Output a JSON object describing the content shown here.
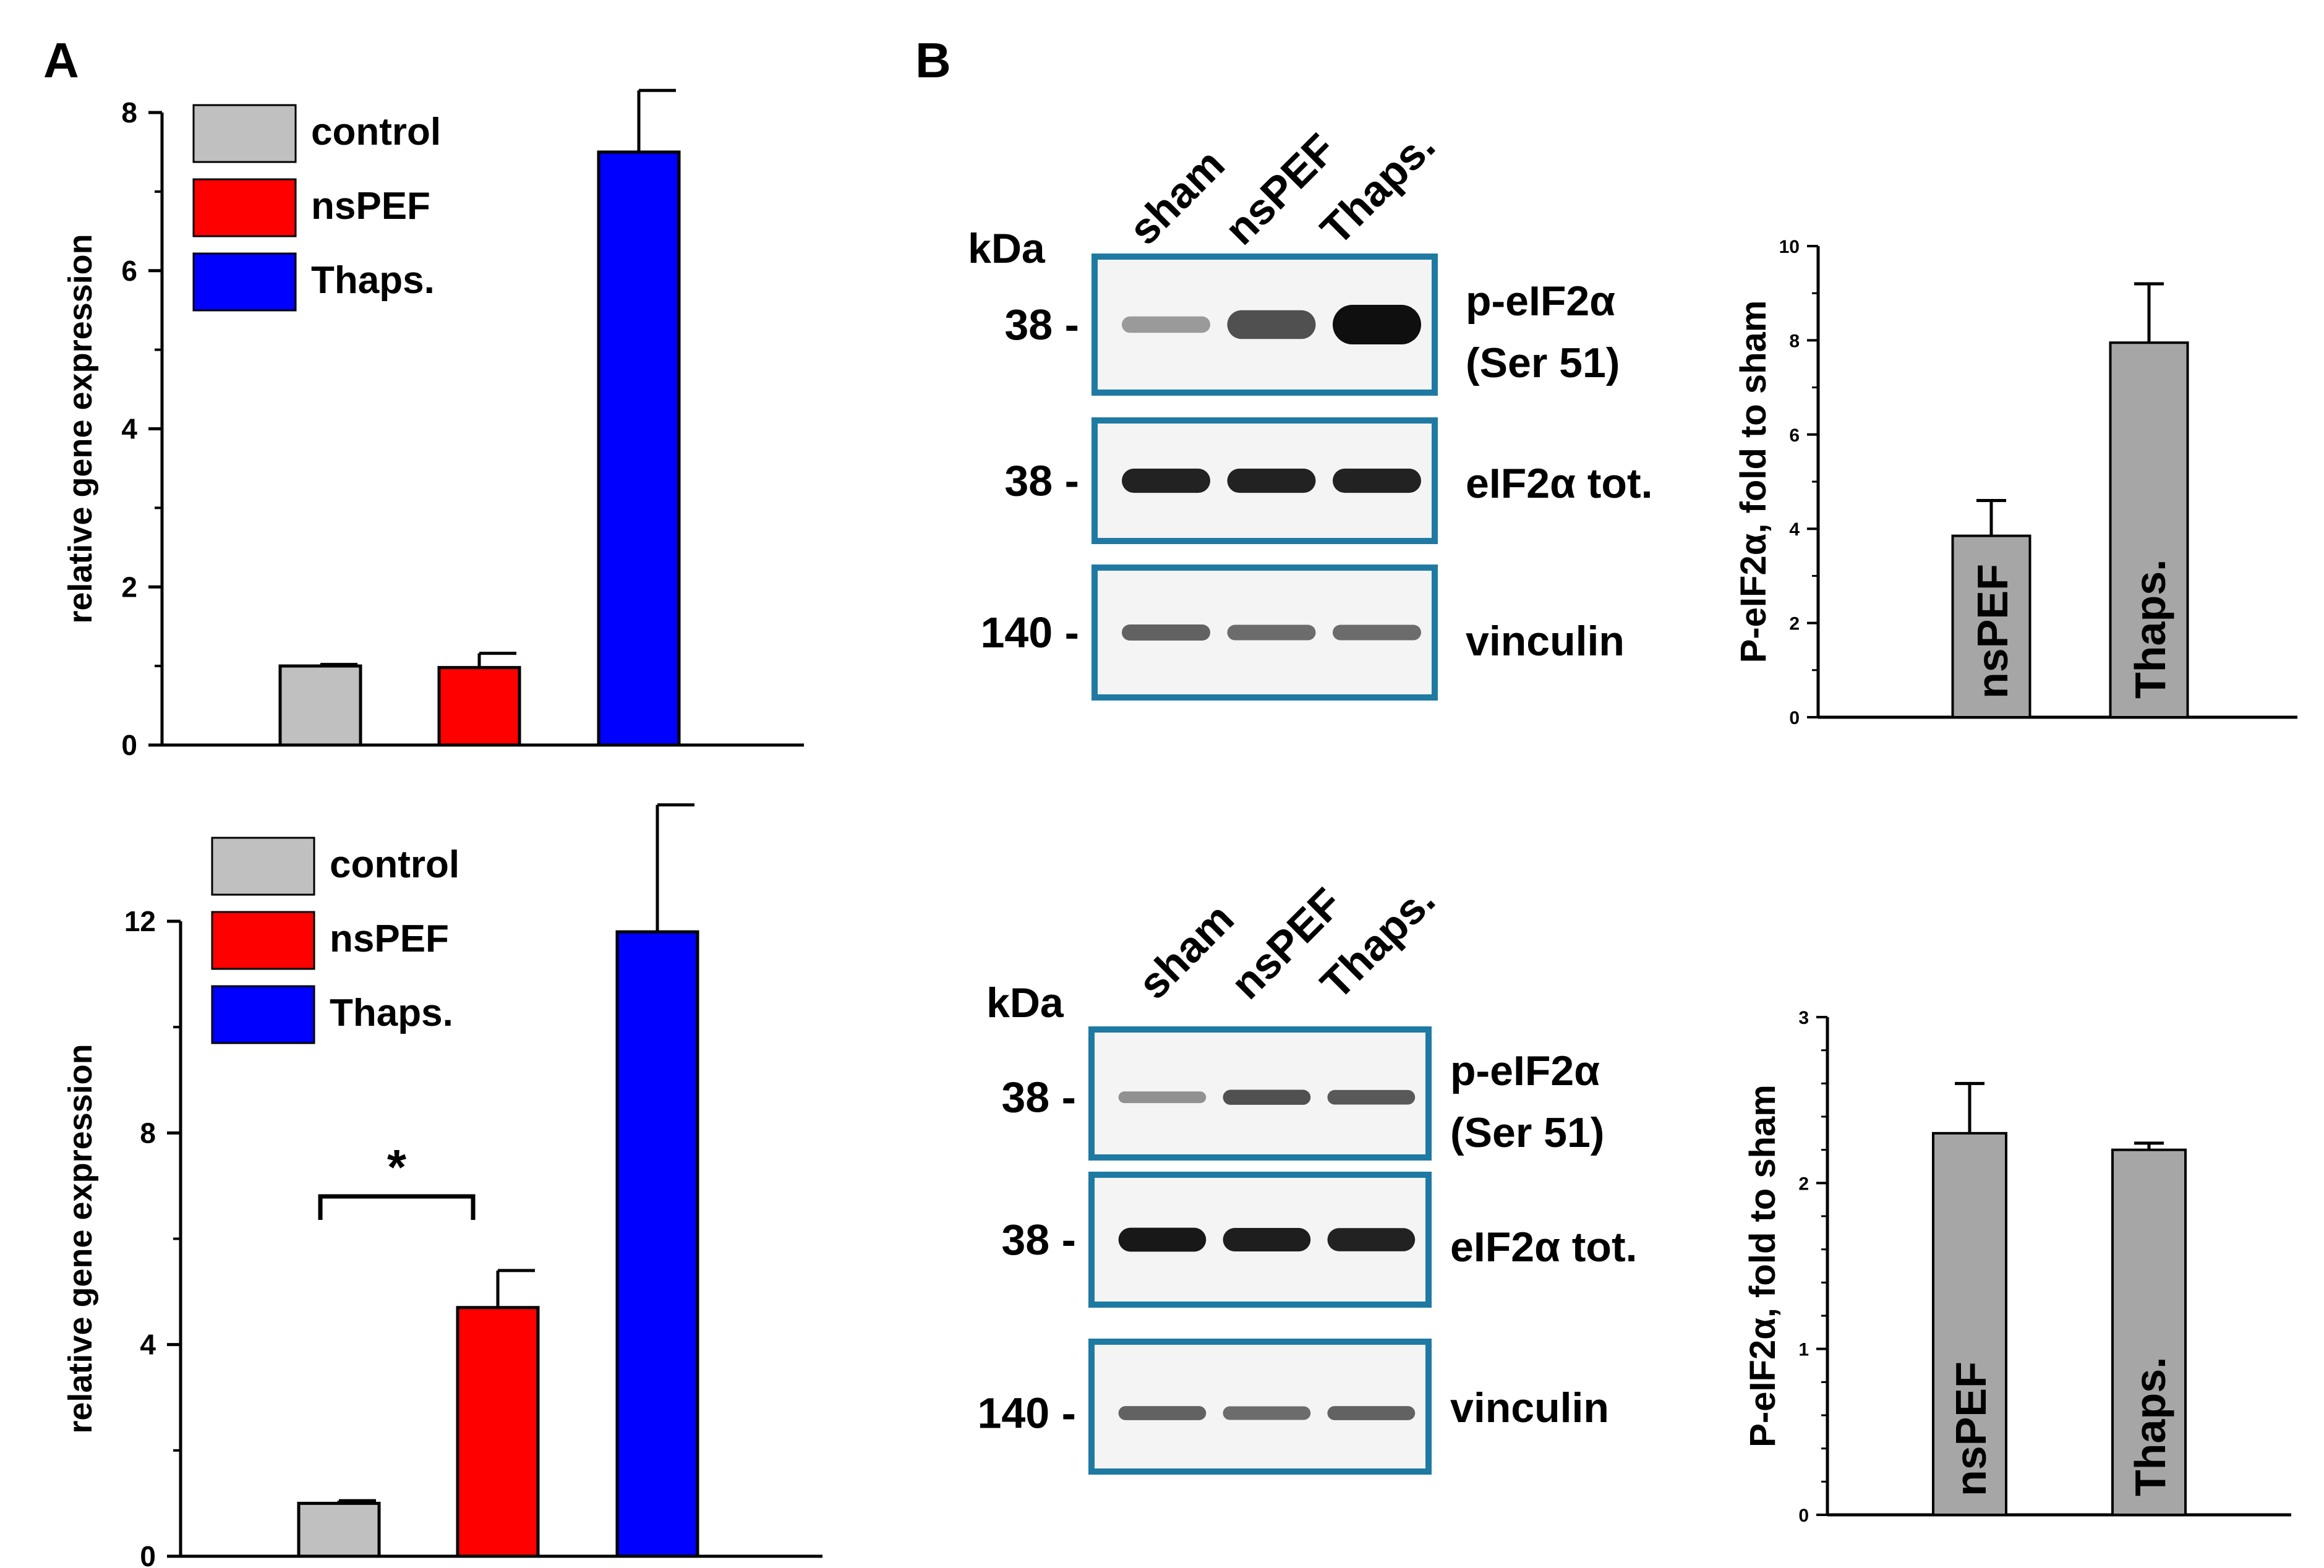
{
  "panel_labels": {
    "a": "A",
    "b": "B"
  },
  "colors": {
    "control": "#c0c0c0",
    "nspef": "#ff0000",
    "thaps": "#0000ff",
    "gray_bar": "#a6a6a6",
    "blot_frame": "#1f7aa3"
  },
  "chart_data": [
    {
      "type": "bar",
      "panel": "A-top",
      "categories": [
        "control",
        "nsPEF",
        "Thaps."
      ],
      "values": [
        1.0,
        0.98,
        7.5
      ],
      "errors": [
        0.02,
        0.18,
        0.78
      ],
      "ylabel": "relative gene expression",
      "ylim": [
        0,
        8
      ],
      "yticks": [
        "0",
        "2",
        "4",
        "6",
        "8"
      ],
      "legend": [
        "control",
        "nsPEF",
        "Thaps."
      ]
    },
    {
      "type": "bar",
      "panel": "A-bottom",
      "categories": [
        "control",
        "nsPEF",
        "Thaps."
      ],
      "values": [
        1.0,
        4.7,
        11.8
      ],
      "errors": [
        0.05,
        0.7,
        2.4
      ],
      "ylabel": "relative gene expression",
      "ylim": [
        0,
        13
      ],
      "yticks": [
        "0",
        "4",
        "8",
        "12"
      ],
      "legend": [
        "control",
        "nsPEF",
        "Thaps."
      ],
      "annotation": "*"
    },
    {
      "type": "bar",
      "panel": "B-top-quant",
      "categories": [
        "nsPEF",
        "Thaps."
      ],
      "values": [
        3.85,
        7.95
      ],
      "errors": [
        0.75,
        1.25
      ],
      "ylabel": "P-eIF2α, fold to sham",
      "ylim": [
        0,
        10
      ],
      "yticks": [
        "0",
        "2",
        "4",
        "6",
        "8",
        "10"
      ]
    },
    {
      "type": "bar",
      "panel": "B-bottom-quant",
      "categories": [
        "nsPEF",
        "Thaps."
      ],
      "values": [
        2.3,
        2.2
      ],
      "errors": [
        0.3,
        0.04
      ],
      "ylabel": "P-eIF2α, fold to sham",
      "ylim": [
        0,
        3
      ],
      "yticks": [
        "0",
        "1",
        "2",
        "3"
      ]
    }
  ],
  "blots": [
    {
      "lanes": [
        "sham",
        "nsPEF",
        "Thaps."
      ],
      "kda_label": "kDa",
      "rows": [
        {
          "marker": "38 -",
          "label": [
            "p-eIF2α",
            "(Ser 51)"
          ],
          "intensity": [
            0.25,
            0.65,
            1.0
          ]
        },
        {
          "marker": "38 -",
          "label": [
            "eIF2α tot."
          ],
          "intensity": [
            0.9,
            0.9,
            0.9
          ]
        },
        {
          "marker": "140 -",
          "label": [
            "vinculin"
          ],
          "intensity": [
            0.55,
            0.5,
            0.5
          ]
        }
      ]
    },
    {
      "lanes": [
        "sham",
        "nsPEF",
        "Thaps."
      ],
      "kda_label": "kDa",
      "rows": [
        {
          "marker": "38 -",
          "label": [
            "p-eIF2α",
            "(Ser 51)"
          ],
          "intensity": [
            0.3,
            0.65,
            0.6
          ]
        },
        {
          "marker": "38 -",
          "label": [
            "eIF2α tot."
          ],
          "intensity": [
            0.95,
            0.92,
            0.9
          ]
        },
        {
          "marker": "140 -",
          "label": [
            "vinculin"
          ],
          "intensity": [
            0.55,
            0.5,
            0.55
          ]
        }
      ]
    }
  ]
}
